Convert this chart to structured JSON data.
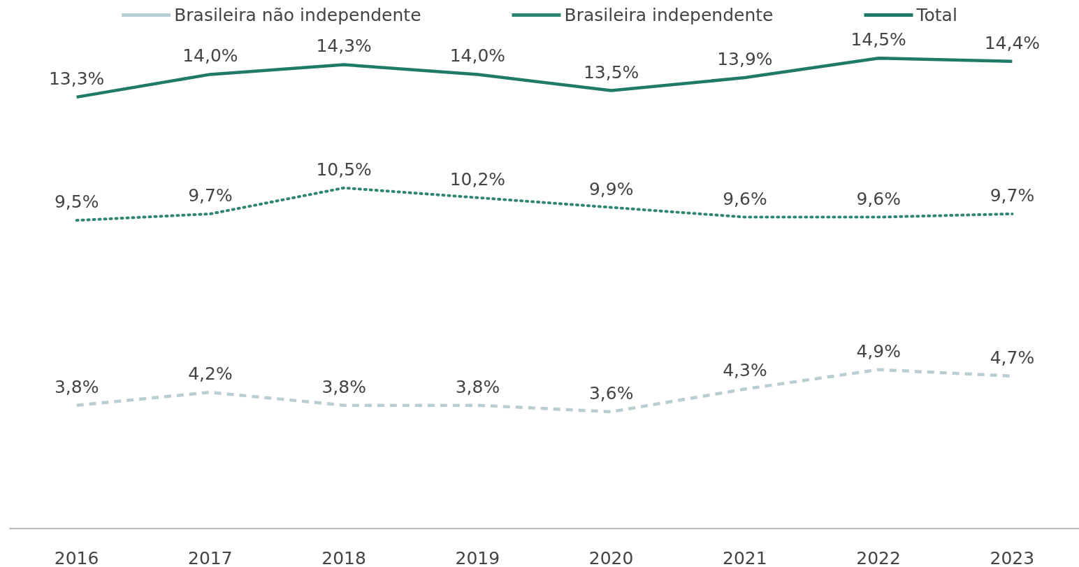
{
  "chart_data": {
    "type": "line",
    "categories": [
      "2016",
      "2017",
      "2018",
      "2019",
      "2020",
      "2021",
      "2022",
      "2023"
    ],
    "series": [
      {
        "name": "Brasileira não independente",
        "color": "#b8ced2",
        "line_style": "dashed",
        "values": [
          3.8,
          4.2,
          3.8,
          3.8,
          3.6,
          4.3,
          4.9,
          4.7
        ],
        "value_labels": [
          "3,8%",
          "4,2%",
          "3,8%",
          "3,8%",
          "3,6%",
          "4,3%",
          "4,9%",
          "4,7%"
        ]
      },
      {
        "name": "Brasileira independente",
        "color": "#2e8572",
        "line_style": "dotted",
        "values": [
          9.5,
          9.7,
          10.5,
          10.2,
          9.9,
          9.6,
          9.6,
          9.7
        ],
        "value_labels": [
          "9,5%",
          "9,7%",
          "10,5%",
          "10,2%",
          "9,9%",
          "9,6%",
          "9,6%",
          "9,7%"
        ]
      },
      {
        "name": "Total",
        "color": "#1f7a68",
        "line_style": "solid",
        "values": [
          13.3,
          14.0,
          14.3,
          14.0,
          13.5,
          13.9,
          14.5,
          14.4
        ],
        "value_labels": [
          "13,3%",
          "14,0%",
          "14,3%",
          "14,0%",
          "13,5%",
          "13,9%",
          "14,5%",
          "14,4%"
        ]
      }
    ],
    "tick_labels": "x",
    "grid": false,
    "legend": "top",
    "marker": "none"
  }
}
